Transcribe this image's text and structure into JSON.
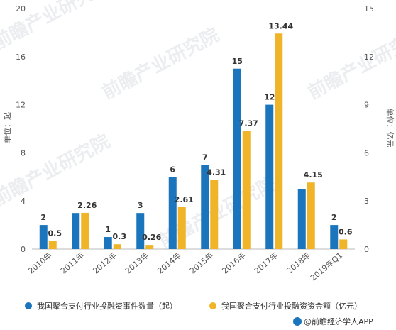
{
  "chart_data": {
    "type": "bar",
    "categories": [
      "2010年",
      "2011年",
      "2012年",
      "2013年",
      "2014年",
      "2015年",
      "2016年",
      "2017年",
      "2018年",
      "2019年Q1"
    ],
    "series": [
      {
        "name": "我国聚合支付行业投融资事件数量（起）",
        "axis": "left",
        "color": "#1b75bc",
        "values": [
          2,
          3,
          1,
          3,
          6,
          7,
          15,
          12,
          5,
          2
        ],
        "labels": [
          "2",
          "",
          "1",
          "3",
          "6",
          "7",
          "15",
          "12",
          "",
          "2"
        ]
      },
      {
        "name": "我国聚合支付行业投融资资金额（亿元）",
        "axis": "right",
        "color": "#f0b429",
        "values": [
          0.5,
          2.26,
          0.3,
          0.26,
          2.61,
          4.31,
          7.37,
          13.44,
          4.15,
          0.6
        ],
        "labels": [
          "0.5",
          "2.26",
          "0.3",
          "0.26",
          "2.61",
          "4.31",
          "7.37",
          "13.44",
          "4.15",
          "0.6"
        ]
      }
    ],
    "y_left": {
      "label": "单位：起",
      "ylim": [
        0,
        20
      ],
      "ticks": [
        "0",
        "4",
        "8",
        "12",
        "16",
        "20"
      ]
    },
    "y_right": {
      "label": "单位：亿元",
      "ylim": [
        0,
        15
      ],
      "ticks": [
        "0",
        "3",
        "6",
        "9",
        "12",
        "15"
      ]
    },
    "legend_position": "bottom",
    "grid": false
  },
  "footer": {
    "credit": "@前瞻经济学人APP"
  },
  "watermark": {
    "text": "前瞻产业研究院"
  }
}
